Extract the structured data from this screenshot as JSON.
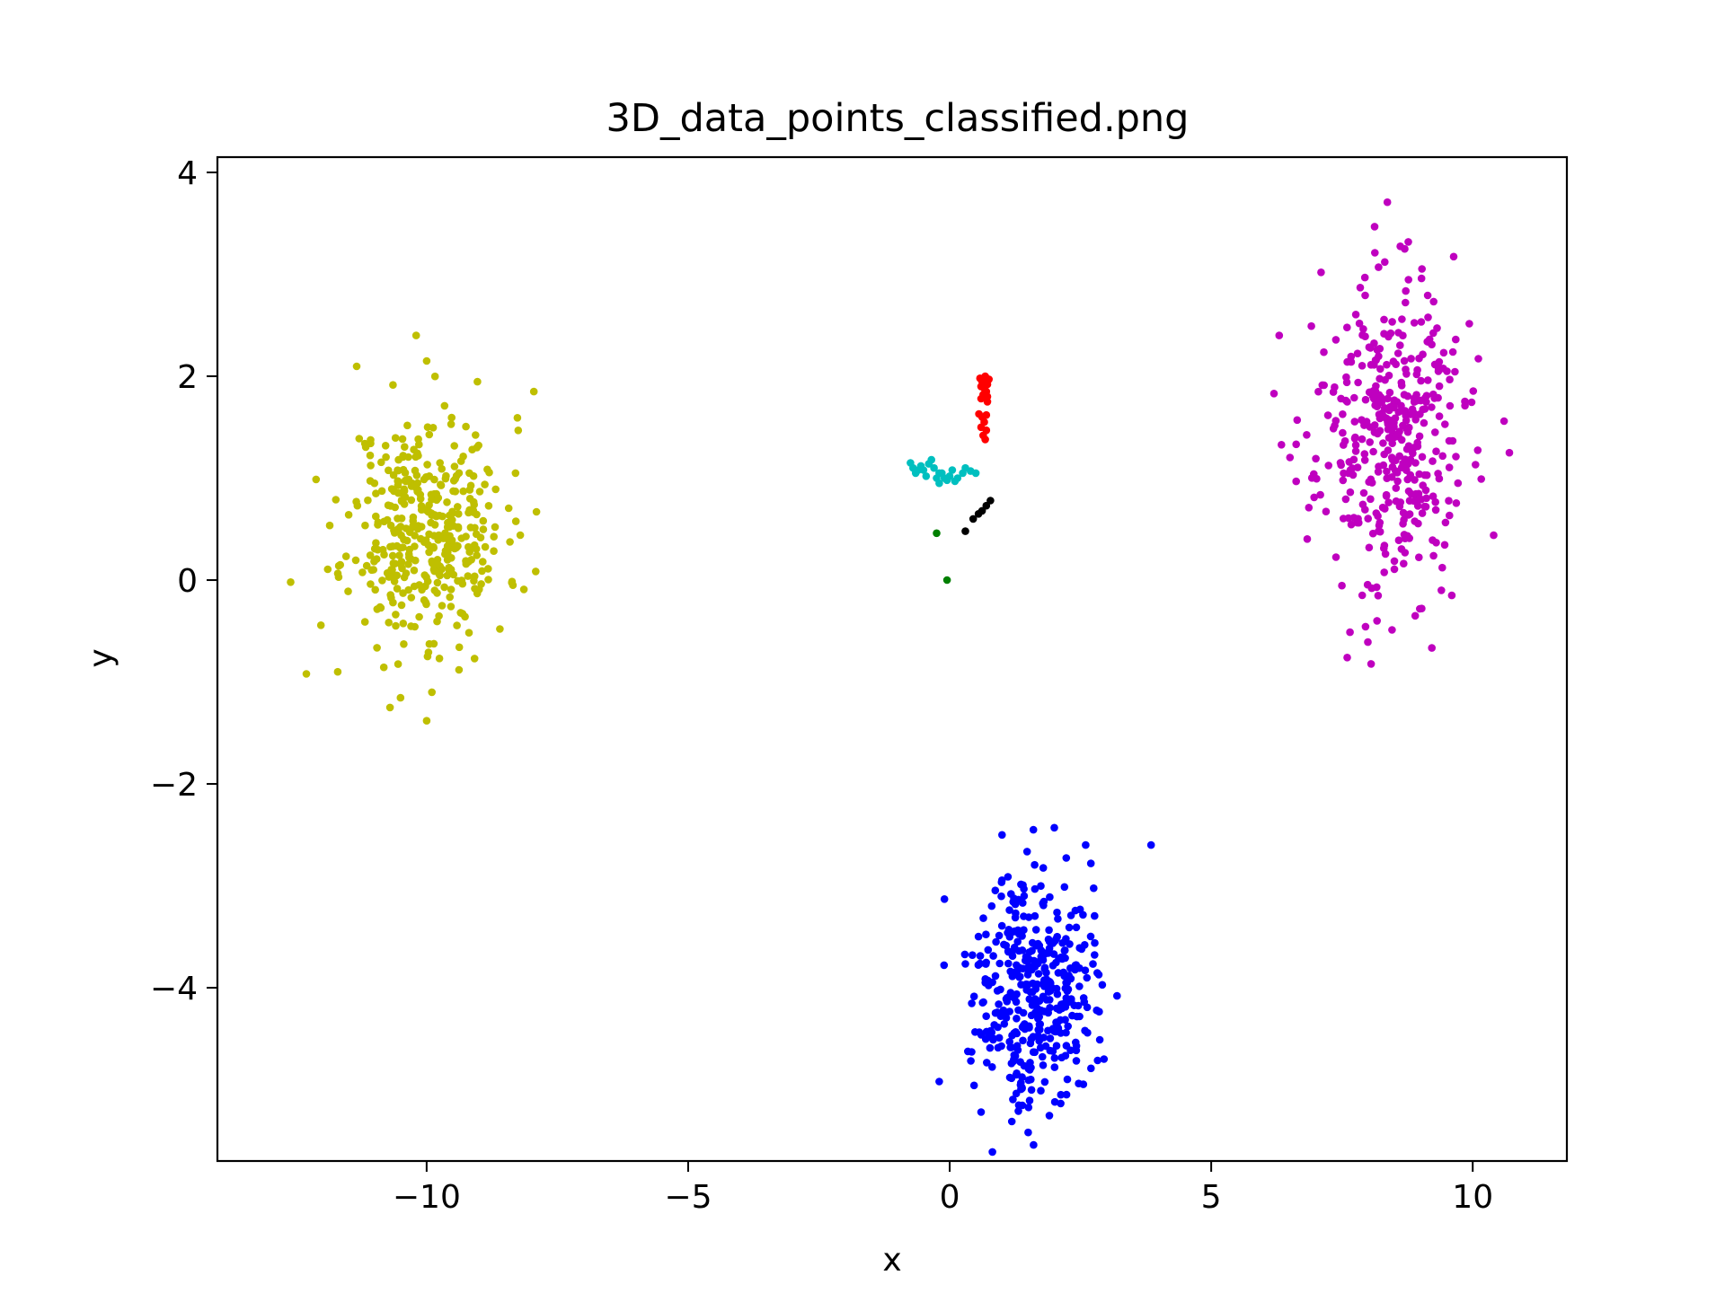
{
  "chart_data": {
    "type": "scatter",
    "title": "3D_data_points_classified.png",
    "xlabel": "x",
    "ylabel": "y",
    "xlim": [
      -14.0,
      11.8
    ],
    "ylim": [
      -5.7,
      4.15
    ],
    "xticks": [
      -10,
      -5,
      0,
      5,
      10
    ],
    "xtick_labels": [
      "−10",
      "−5",
      "0",
      "5",
      "10"
    ],
    "yticks": [
      -4,
      -2,
      0,
      2,
      4
    ],
    "ytick_labels": [
      "−4",
      "−2",
      "0",
      "2",
      "4"
    ],
    "grid": false,
    "series": [
      {
        "color": "#bfbf00",
        "cluster": {
          "center": [
            -10.0,
            0.5
          ],
          "std": [
            0.75,
            0.55
          ],
          "count": 400,
          "seed": 11
        },
        "points": [
          [
            -12.6,
            -0.02
          ],
          [
            -12.3,
            -0.92
          ],
          [
            -11.7,
            -0.9
          ],
          [
            -10.2,
            2.4
          ],
          [
            -10.0,
            -1.38
          ],
          [
            -9.9,
            -1.1
          ],
          [
            -10.7,
            -1.25
          ],
          [
            -7.95,
            1.85
          ],
          [
            -7.9,
            0.67
          ],
          [
            -8.3,
            1.05
          ],
          [
            -8.6,
            -0.48
          ],
          [
            -10.0,
            2.15
          ]
        ]
      },
      {
        "color": "#bf00bf",
        "cluster": {
          "center": [
            8.4,
            1.4
          ],
          "std": [
            0.7,
            0.75
          ],
          "count": 400,
          "seed": 23
        },
        "points": [
          [
            6.3,
            2.4
          ],
          [
            6.2,
            1.83
          ],
          [
            7.6,
            -0.76
          ],
          [
            10.7,
            1.25
          ],
          [
            10.6,
            1.56
          ],
          [
            8.7,
            3.25
          ],
          [
            8.2,
            3.07
          ],
          [
            7.1,
            3.02
          ],
          [
            9.6,
            -0.15
          ],
          [
            9.4,
            -0.1
          ],
          [
            10.4,
            0.44
          ],
          [
            8.9,
            -0.35
          ]
        ]
      },
      {
        "color": "#0000ff",
        "cluster": {
          "center": [
            1.6,
            -4.0
          ],
          "std": [
            0.55,
            0.55
          ],
          "count": 400,
          "seed": 37
        },
        "points": [
          [
            3.85,
            -2.6
          ],
          [
            3.2,
            -4.08
          ],
          [
            1.5,
            -5.42
          ],
          [
            2.6,
            -2.6
          ],
          [
            2.0,
            -2.43
          ],
          [
            1.6,
            -2.45
          ],
          [
            -0.1,
            -3.13
          ],
          [
            -0.2,
            -4.92
          ],
          [
            0.6,
            -5.22
          ],
          [
            2.95,
            -4.7
          ],
          [
            1.0,
            -2.5
          ],
          [
            2.7,
            -2.78
          ]
        ]
      },
      {
        "color": "#ff0000",
        "points": [
          [
            0.58,
            1.98
          ],
          [
            0.62,
            1.95
          ],
          [
            0.68,
            2.0
          ],
          [
            0.72,
            1.92
          ],
          [
            0.75,
            1.97
          ],
          [
            0.6,
            1.9
          ],
          [
            0.66,
            1.88
          ],
          [
            0.7,
            1.85
          ],
          [
            0.64,
            1.82
          ],
          [
            0.6,
            1.78
          ],
          [
            0.72,
            1.8
          ],
          [
            0.56,
            1.63
          ],
          [
            0.62,
            1.6
          ],
          [
            0.7,
            1.62
          ],
          [
            0.66,
            1.55
          ],
          [
            0.6,
            1.5
          ],
          [
            0.7,
            1.47
          ],
          [
            0.64,
            1.42
          ],
          [
            0.68,
            1.38
          ],
          [
            0.72,
            1.75
          ]
        ]
      },
      {
        "color": "#00bfbf",
        "points": [
          [
            -0.75,
            1.15
          ],
          [
            -0.7,
            1.1
          ],
          [
            -0.65,
            1.05
          ],
          [
            -0.55,
            1.12
          ],
          [
            -0.5,
            1.08
          ],
          [
            -0.45,
            1.02
          ],
          [
            -0.4,
            1.14
          ],
          [
            -0.35,
            1.18
          ],
          [
            -0.3,
            1.1
          ],
          [
            -0.25,
            1.0
          ],
          [
            -0.2,
            0.95
          ],
          [
            -0.15,
            1.05
          ],
          [
            -0.1,
            1.0
          ],
          [
            -0.05,
            0.98
          ],
          [
            0.0,
            1.02
          ],
          [
            0.05,
            1.08
          ],
          [
            0.1,
            0.97
          ],
          [
            0.15,
            1.0
          ],
          [
            0.25,
            1.05
          ],
          [
            0.3,
            1.1
          ],
          [
            0.4,
            1.07
          ],
          [
            0.5,
            1.05
          ],
          [
            -0.6,
            1.08
          ],
          [
            -0.2,
            1.05
          ]
        ]
      },
      {
        "color": "#000000",
        "points": [
          [
            0.3,
            0.48
          ],
          [
            0.45,
            0.6
          ],
          [
            0.55,
            0.65
          ],
          [
            0.62,
            0.68
          ],
          [
            0.7,
            0.73
          ],
          [
            0.78,
            0.78
          ]
        ]
      },
      {
        "color": "#007f00",
        "points": [
          [
            -0.25,
            0.46
          ],
          [
            -0.05,
            0.0
          ]
        ]
      }
    ]
  }
}
